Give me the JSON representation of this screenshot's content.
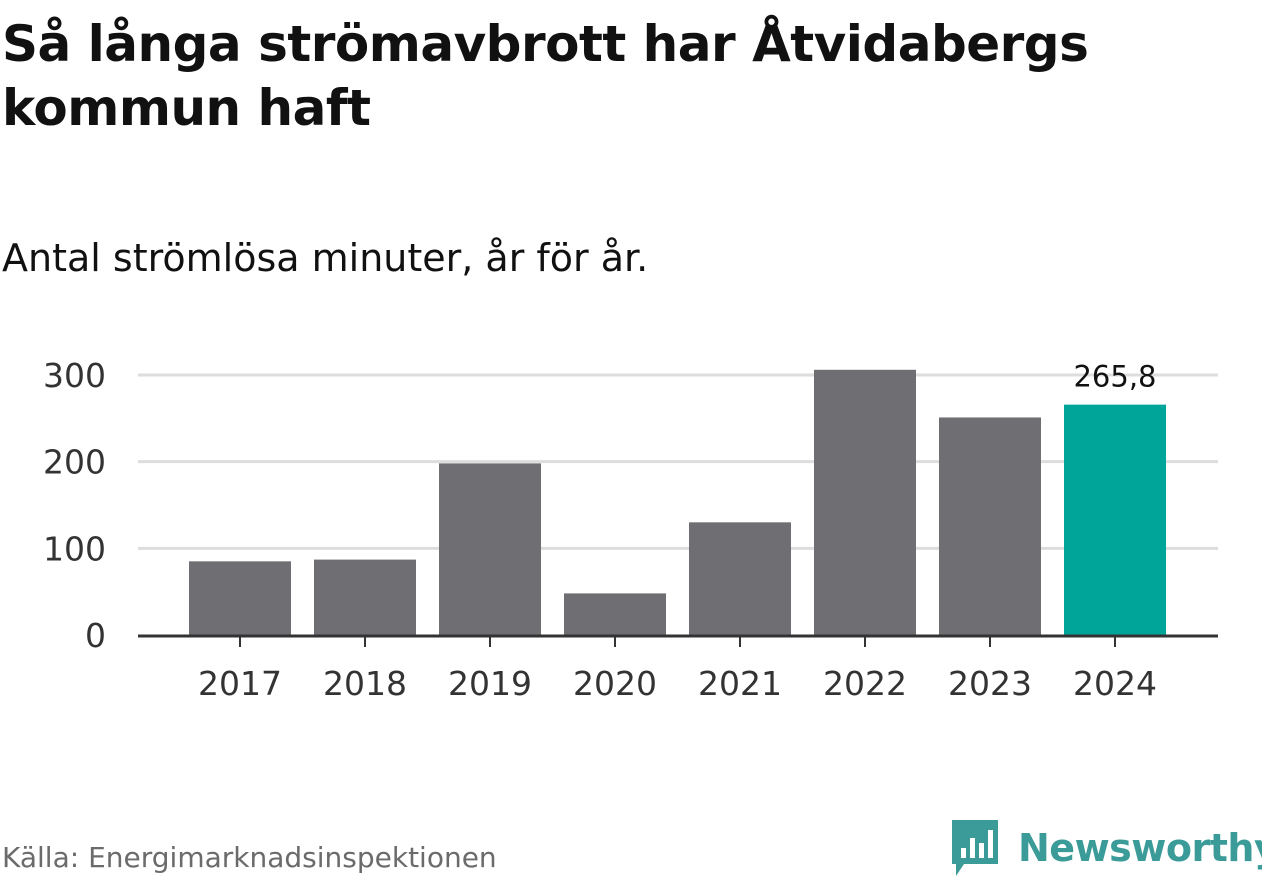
{
  "title": "Så långa strömavbrott har Åtvidabergs kommun haft",
  "subtitle": "Antal strömlösa minuter, år för år.",
  "source": "Källa: Energimarknadsinspektionen",
  "brand": {
    "name": "Newsworthy",
    "icon": "newsworthy-logo-icon",
    "color": "#3a9b98"
  },
  "colors": {
    "bar": "#6f6e73",
    "highlight": "#00a59a",
    "grid": "#dddddd",
    "axis": "#333333"
  },
  "chart_data": {
    "type": "bar",
    "title": "Så långa strömavbrott har Åtvidabergs kommun haft",
    "subtitle": "Antal strömlösa minuter, år för år.",
    "xlabel": "",
    "ylabel": "",
    "categories": [
      "2017",
      "2018",
      "2019",
      "2020",
      "2021",
      "2022",
      "2023",
      "2024"
    ],
    "values": [
      85,
      87,
      198,
      48,
      130,
      306,
      251,
      265.8
    ],
    "highlight_index": 7,
    "data_labels": [
      {
        "index": 7,
        "text": "265,8"
      }
    ],
    "y_ticks": [
      0,
      100,
      200,
      300
    ],
    "y_tick_labels": [
      "0",
      "100",
      "200",
      "300"
    ],
    "ylim": [
      0,
      310
    ],
    "grid": true,
    "legend": "none"
  }
}
